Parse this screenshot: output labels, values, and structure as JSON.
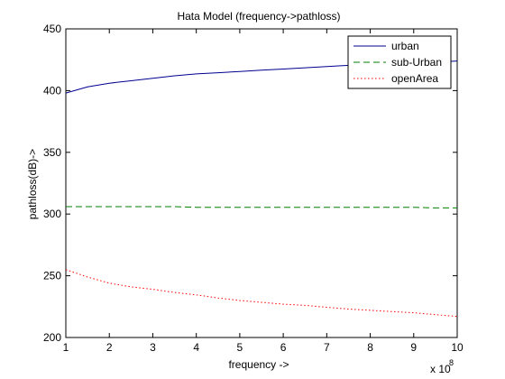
{
  "chart_data": {
    "type": "line",
    "title": "Hata Model (frequency->pathloss)",
    "xlabel": "frequency ->",
    "ylabel": "pathloss(dB)->",
    "x_exponent_label": "x 10",
    "x_exponent_power": "8",
    "xlim": [
      1,
      10
    ],
    "ylim": [
      200,
      450
    ],
    "xticks": [
      1,
      2,
      3,
      4,
      5,
      6,
      7,
      8,
      9,
      10
    ],
    "yticks": [
      200,
      250,
      300,
      350,
      400,
      450
    ],
    "grid": false,
    "legend_position": "top-right",
    "x": [
      1,
      1.5,
      2,
      2.5,
      3,
      3.5,
      4,
      4.5,
      5,
      5.5,
      6,
      6.5,
      7,
      7.5,
      8,
      8.5,
      9,
      9.5,
      10
    ],
    "series": [
      {
        "name": "urban",
        "color": "#00008f",
        "dash": "solid",
        "values": [
          398,
          403,
          406,
          408,
          410,
          412,
          413.5,
          414.5,
          415.5,
          416.5,
          417.5,
          418.5,
          419.5,
          420.5,
          421,
          422,
          422.5,
          423,
          424
        ]
      },
      {
        "name": "sub-Urban",
        "color": "#007f00",
        "dash": "dashed",
        "values": [
          306,
          306,
          306,
          306,
          306,
          306,
          305.5,
          305.5,
          305.5,
          305.5,
          305.5,
          305.5,
          305.5,
          305.5,
          305.5,
          305.5,
          305.5,
          305,
          305
        ]
      },
      {
        "name": "openArea",
        "color": "#ff0000",
        "dash": "dotted",
        "values": [
          255,
          249,
          244,
          241,
          239,
          236.5,
          234.5,
          232,
          230,
          228.5,
          227,
          226,
          224.5,
          223,
          222,
          221,
          220,
          218.5,
          217
        ]
      }
    ]
  }
}
